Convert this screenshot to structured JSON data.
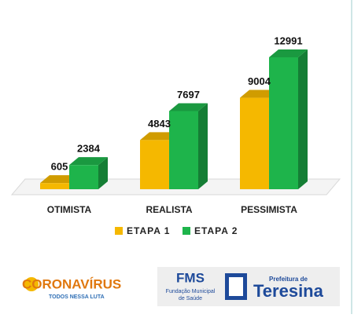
{
  "chart_data": {
    "type": "bar3d",
    "categories": [
      "OTIMISTA",
      "REALISTA",
      "PESSIMISTA"
    ],
    "series": [
      {
        "name": "ETAPA 1",
        "color": "#f5b800",
        "values": [
          605,
          4843,
          9004
        ]
      },
      {
        "name": "ETAPA 2",
        "color": "#1eb44b",
        "values": [
          2384,
          7697,
          12991
        ]
      }
    ]
  },
  "footer": {
    "campaign": {
      "title": "CORONAVÍRUS",
      "subtitle": "TODOS NESSA LUTA"
    },
    "agency": {
      "acronym": "FMS",
      "name_line1": "Fundação Municipal",
      "name_line2": "de Saúde",
      "city_prefix": "Prefeitura de",
      "city": "Teresina"
    }
  }
}
